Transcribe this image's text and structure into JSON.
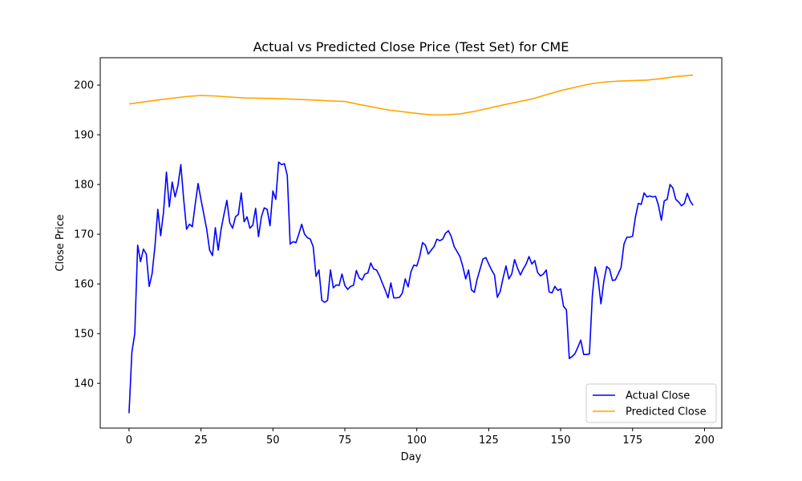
{
  "chart_data": {
    "type": "line",
    "title": "Actual vs Predicted Close Price (Test Set) for CME",
    "xlabel": "Day",
    "ylabel": "Close Price",
    "xlim": [
      -10,
      206
    ],
    "ylim": [
      131,
      205.5
    ],
    "xticks": [
      0,
      25,
      50,
      75,
      100,
      125,
      150,
      175,
      200
    ],
    "yticks": [
      140,
      150,
      160,
      170,
      180,
      190,
      200
    ],
    "grid": false,
    "legend_position": "lower-right",
    "series": [
      {
        "name": "Actual Close",
        "color": "#0000ff",
        "x": [
          0,
          1,
          2,
          3,
          4,
          5,
          6,
          7,
          8,
          9,
          10,
          11,
          12,
          13,
          14,
          15,
          16,
          17,
          18,
          19,
          20,
          21,
          22,
          23,
          24,
          25,
          26,
          27,
          28,
          29,
          30,
          31,
          32,
          33,
          34,
          35,
          36,
          37,
          38,
          39,
          40,
          41,
          42,
          43,
          44,
          45,
          46,
          47,
          48,
          49,
          50,
          51,
          52,
          53,
          54,
          55,
          56,
          57,
          58,
          59,
          60,
          61,
          62,
          63,
          64,
          65,
          66,
          67,
          68,
          69,
          70,
          71,
          72,
          73,
          74,
          75,
          76,
          77,
          78,
          79,
          80,
          81,
          82,
          83,
          84,
          85,
          86,
          87,
          88,
          89,
          90,
          91,
          92,
          93,
          94,
          95,
          96,
          97,
          98,
          99,
          100,
          101,
          102,
          103,
          104,
          105,
          106,
          107,
          108,
          109,
          110,
          111,
          112,
          113,
          114,
          115,
          116,
          117,
          118,
          119,
          120,
          121,
          122,
          123,
          124,
          125,
          126,
          127,
          128,
          129,
          130,
          131,
          132,
          133,
          134,
          135,
          136,
          137,
          138,
          139,
          140,
          141,
          142,
          143,
          144,
          145,
          146,
          147,
          148,
          149,
          150,
          151,
          152,
          153,
          154,
          155,
          156,
          157,
          158,
          159,
          160,
          161,
          162,
          163,
          164,
          165,
          166,
          167,
          168,
          169,
          170,
          171,
          172,
          173,
          174,
          175,
          176,
          177,
          178,
          179,
          180,
          181,
          182,
          183,
          184,
          185,
          186,
          187,
          188,
          189,
          190,
          191,
          192,
          193,
          194,
          195,
          196
        ],
        "values": [
          134,
          146.3,
          150,
          167.8,
          164.5,
          167,
          166,
          159.5,
          162,
          167.5,
          175,
          169.7,
          174.5,
          182.5,
          175.5,
          180.5,
          177.5,
          179.8,
          184,
          177,
          171,
          172,
          171.5,
          176,
          180.2,
          177,
          174,
          171,
          166.8,
          165.7,
          171.3,
          166.8,
          171,
          174,
          176.8,
          172.3,
          171.2,
          173.5,
          174,
          178.3,
          172.5,
          173.5,
          171.2,
          171.8,
          175.2,
          169.5,
          173.5,
          175.3,
          175,
          171.7,
          178.7,
          177,
          184.5,
          184,
          184.2,
          181.8,
          168,
          168.5,
          168.3,
          170,
          172,
          170,
          169.3,
          169,
          167.5,
          161.5,
          162.8,
          156.7,
          156.3,
          156.7,
          162.8,
          159.2,
          159.8,
          159.7,
          162,
          159.7,
          158.9,
          159.5,
          159.7,
          162.7,
          161.2,
          160.8,
          162,
          162.2,
          164.2,
          163,
          162.8,
          161.7,
          160.2,
          158.8,
          157.2,
          160.2,
          157.2,
          157.2,
          157.3,
          158.2,
          161,
          159.4,
          162.5,
          163.8,
          163.6,
          165.5,
          168.3,
          167.8,
          166,
          166.8,
          167.5,
          169,
          168.7,
          169,
          170.2,
          170.7,
          169.5,
          167.5,
          166.5,
          165.5,
          163.5,
          161,
          162.8,
          158.8,
          158.3,
          161,
          163,
          165,
          165.3,
          164,
          162.8,
          161.8,
          157.3,
          158.5,
          161.2,
          163.6,
          161,
          162,
          164.9,
          163.2,
          161.8,
          163,
          164,
          165.5,
          164,
          164.7,
          162.3,
          161.6,
          162,
          162.8,
          158.4,
          158.2,
          159.5,
          158.7,
          159,
          155.5,
          154.8,
          145,
          145.4,
          146,
          147.3,
          148.7,
          145.8,
          145.8,
          145.9,
          157.5,
          163.4,
          161,
          156,
          160.5,
          163.5,
          163,
          160.7,
          160.8,
          162,
          163.3,
          168,
          169.4,
          169.4,
          169.6,
          173.5,
          176.2,
          176,
          178.3,
          177.5,
          177.7,
          177.5,
          177.6,
          175.8,
          172.8,
          176.7,
          177,
          180,
          179.3,
          177,
          176.5,
          175.7,
          176.2,
          178.2,
          176.7,
          175.8
        ]
      },
      {
        "name": "Predicted Close",
        "color": "#ffa500",
        "x": [
          0,
          10,
          20,
          25,
          30,
          40,
          50,
          60,
          70,
          75,
          80,
          90,
          100,
          105,
          110,
          115,
          120,
          130,
          140,
          150,
          160,
          165,
          170,
          175,
          180,
          185,
          190,
          196
        ],
        "values": [
          196.2,
          197,
          197.7,
          197.9,
          197.8,
          197.4,
          197.3,
          197.1,
          196.8,
          196.7,
          196.1,
          195,
          194.3,
          194,
          194,
          194.2,
          194.7,
          196,
          197.2,
          198.9,
          200.2,
          200.6,
          200.8,
          200.9,
          201,
          201.3,
          201.7,
          202
        ]
      }
    ]
  }
}
